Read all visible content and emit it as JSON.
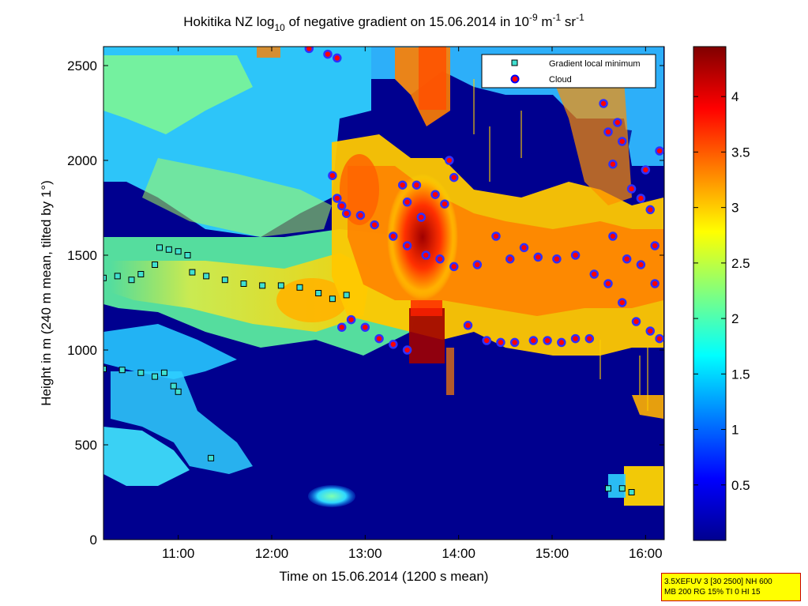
{
  "chart_data": {
    "type": "heatmap",
    "title_parts": {
      "a": "Hokitika NZ log",
      "a_sub": "10",
      "b": " of negative gradient on 15.06.2014 in 10",
      "b_sup": "-9",
      "c": " m",
      "c_sup": "-1",
      "d": " sr",
      "d_sup": "-1"
    },
    "xlabel": "Time on 15.06.2014 (1200 s mean)",
    "ylabel": "Height in m (240 m mean, tilted by 1°)",
    "x_range_hours": [
      10.2,
      16.2
    ],
    "xticks": [
      {
        "value": 11,
        "label": "11:00"
      },
      {
        "value": 12,
        "label": "12:00"
      },
      {
        "value": 13,
        "label": "13:00"
      },
      {
        "value": 14,
        "label": "14:00"
      },
      {
        "value": 15,
        "label": "15:00"
      },
      {
        "value": 16,
        "label": "16:00"
      }
    ],
    "ylim": [
      0,
      2600
    ],
    "yticks": [
      {
        "value": 0,
        "label": "0"
      },
      {
        "value": 500,
        "label": "500"
      },
      {
        "value": 1000,
        "label": "1000"
      },
      {
        "value": 1500,
        "label": "1500"
      },
      {
        "value": 2000,
        "label": "2000"
      },
      {
        "value": 2500,
        "label": "2500"
      }
    ],
    "colorbar": {
      "range": [
        0,
        4.45
      ],
      "ticks": [
        {
          "value": 0.5,
          "label": "0.5"
        },
        {
          "value": 1,
          "label": "1"
        },
        {
          "value": 1.5,
          "label": "1.5"
        },
        {
          "value": 2,
          "label": "2"
        },
        {
          "value": 2.5,
          "label": "2.5"
        },
        {
          "value": 3,
          "label": "3"
        },
        {
          "value": 3.5,
          "label": "3.5"
        },
        {
          "value": 4,
          "label": "4"
        }
      ],
      "colormap": "jet"
    },
    "legend": {
      "placement": "top-right",
      "entries": [
        {
          "label": "Gradient local minimum",
          "marker": "square",
          "face": "#40e0d0",
          "edge": "#000000"
        },
        {
          "label": "Cloud",
          "marker": "circle",
          "face": "#ff0000",
          "edge": "#0000ff"
        }
      ]
    },
    "series": [
      {
        "name": "Gradient local minimum",
        "points": [
          [
            10.2,
            1380
          ],
          [
            10.35,
            1390
          ],
          [
            10.5,
            1370
          ],
          [
            10.6,
            1400
          ],
          [
            10.75,
            1450
          ],
          [
            10.8,
            1540
          ],
          [
            10.9,
            1530
          ],
          [
            11.0,
            1520
          ],
          [
            11.1,
            1500
          ],
          [
            11.15,
            1410
          ],
          [
            11.3,
            1390
          ],
          [
            11.5,
            1370
          ],
          [
            11.7,
            1350
          ],
          [
            11.9,
            1340
          ],
          [
            12.1,
            1340
          ],
          [
            12.3,
            1330
          ],
          [
            12.5,
            1300
          ],
          [
            12.65,
            1270
          ],
          [
            12.8,
            1290
          ],
          [
            10.2,
            900
          ],
          [
            10.4,
            895
          ],
          [
            10.6,
            880
          ],
          [
            10.75,
            860
          ],
          [
            10.85,
            880
          ],
          [
            10.95,
            810
          ],
          [
            11.0,
            780
          ],
          [
            11.35,
            430
          ],
          [
            15.6,
            270
          ],
          [
            15.75,
            270
          ],
          [
            15.85,
            250
          ]
        ]
      },
      {
        "name": "Cloud",
        "points": [
          [
            12.4,
            2590
          ],
          [
            12.6,
            2560
          ],
          [
            12.7,
            2540
          ],
          [
            12.65,
            1920
          ],
          [
            12.7,
            1800
          ],
          [
            12.75,
            1760
          ],
          [
            12.8,
            1720
          ],
          [
            12.95,
            1710
          ],
          [
            13.1,
            1660
          ],
          [
            13.3,
            1600
          ],
          [
            13.45,
            1550
          ],
          [
            13.65,
            1500
          ],
          [
            13.8,
            1480
          ],
          [
            13.95,
            1440
          ],
          [
            12.75,
            1120
          ],
          [
            12.85,
            1160
          ],
          [
            13.0,
            1120
          ],
          [
            13.15,
            1060
          ],
          [
            13.3,
            1030
          ],
          [
            13.45,
            1000
          ],
          [
            13.4,
            1870
          ],
          [
            13.45,
            1780
          ],
          [
            13.55,
            1870
          ],
          [
            13.6,
            1700
          ],
          [
            13.75,
            1820
          ],
          [
            13.85,
            1770
          ],
          [
            13.9,
            2000
          ],
          [
            13.95,
            1910
          ],
          [
            14.1,
            1130
          ],
          [
            14.3,
            1050
          ],
          [
            14.45,
            1040
          ],
          [
            14.6,
            1040
          ],
          [
            14.8,
            1050
          ],
          [
            14.95,
            1050
          ],
          [
            15.1,
            1040
          ],
          [
            15.25,
            1060
          ],
          [
            15.4,
            1060
          ],
          [
            14.2,
            1450
          ],
          [
            14.4,
            1600
          ],
          [
            14.55,
            1480
          ],
          [
            14.7,
            1540
          ],
          [
            14.85,
            1490
          ],
          [
            15.05,
            1480
          ],
          [
            15.25,
            1500
          ],
          [
            15.45,
            1400
          ],
          [
            15.55,
            2300
          ],
          [
            15.6,
            2150
          ],
          [
            15.65,
            1980
          ],
          [
            15.7,
            2200
          ],
          [
            15.75,
            2100
          ],
          [
            15.85,
            1850
          ],
          [
            15.95,
            1800
          ],
          [
            16.0,
            1950
          ],
          [
            16.05,
            1740
          ],
          [
            16.1,
            1550
          ],
          [
            16.15,
            2050
          ],
          [
            15.6,
            1350
          ],
          [
            15.75,
            1250
          ],
          [
            15.9,
            1150
          ],
          [
            16.05,
            1100
          ],
          [
            16.15,
            1060
          ],
          [
            15.65,
            1600
          ],
          [
            15.8,
            1480
          ],
          [
            15.95,
            1450
          ],
          [
            16.1,
            1350
          ]
        ]
      }
    ]
  },
  "info_box": {
    "line1": "3.5XEFUV 3 [30 2500] NH 600",
    "line2": "MB 200 RG 15% TI 0 HI 15"
  }
}
